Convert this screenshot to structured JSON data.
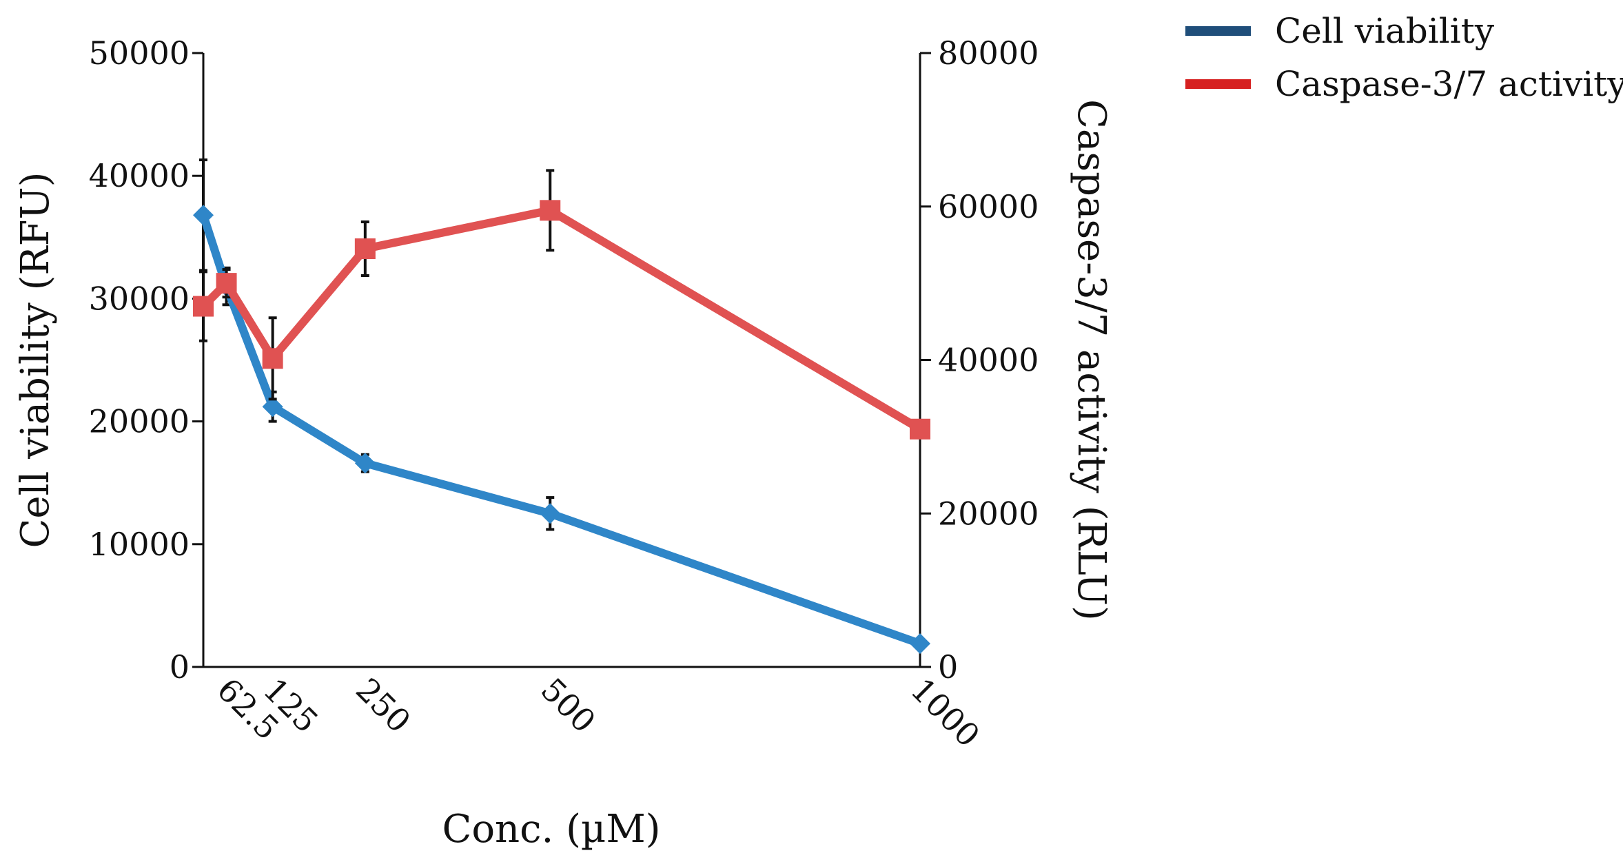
{
  "chart_data": {
    "type": "line",
    "x": [
      31.25,
      62.5,
      125,
      250,
      500,
      1000
    ],
    "x_tick_labels": [
      {
        "x": 62.5,
        "label": "62.5"
      },
      {
        "x": 125,
        "label": "125"
      },
      {
        "x": 250,
        "label": "250"
      },
      {
        "x": 500,
        "label": "500"
      },
      {
        "x": 1000,
        "label": "1000"
      }
    ],
    "xlabel": "Conc. (µM)",
    "xlim": [
      31.25,
      1000
    ],
    "y_left": {
      "label": "Cell viability (RFU)",
      "lim": [
        0,
        50000
      ],
      "ticks": [
        "0",
        "10000",
        "20000",
        "30000",
        "40000",
        "50000"
      ]
    },
    "y_right": {
      "label": "Caspase-3/7 activity (RLU)",
      "lim": [
        0,
        80000
      ],
      "ticks": [
        "0",
        "20000",
        "40000",
        "60000",
        "80000"
      ]
    },
    "series": [
      {
        "name": "Cell viability",
        "axis": "left",
        "color": "#2f86c8",
        "legend_color": "#1f4e7a",
        "marker": "diamond",
        "values": [
          36800,
          31000,
          21200,
          16600,
          12500,
          1900
        ],
        "errors": [
          4500,
          1500,
          1200,
          700,
          1300,
          0
        ]
      },
      {
        "name": "Caspase-3/7 activity",
        "axis": "right",
        "color": "#e05252",
        "legend_color": "#d62020",
        "marker": "square",
        "values": [
          47000,
          50000,
          40200,
          54500,
          59500,
          31000
        ],
        "errors": [
          4500,
          1800,
          5300,
          3500,
          5200,
          0
        ]
      }
    ],
    "legend_position": "top-right",
    "grid": false
  }
}
